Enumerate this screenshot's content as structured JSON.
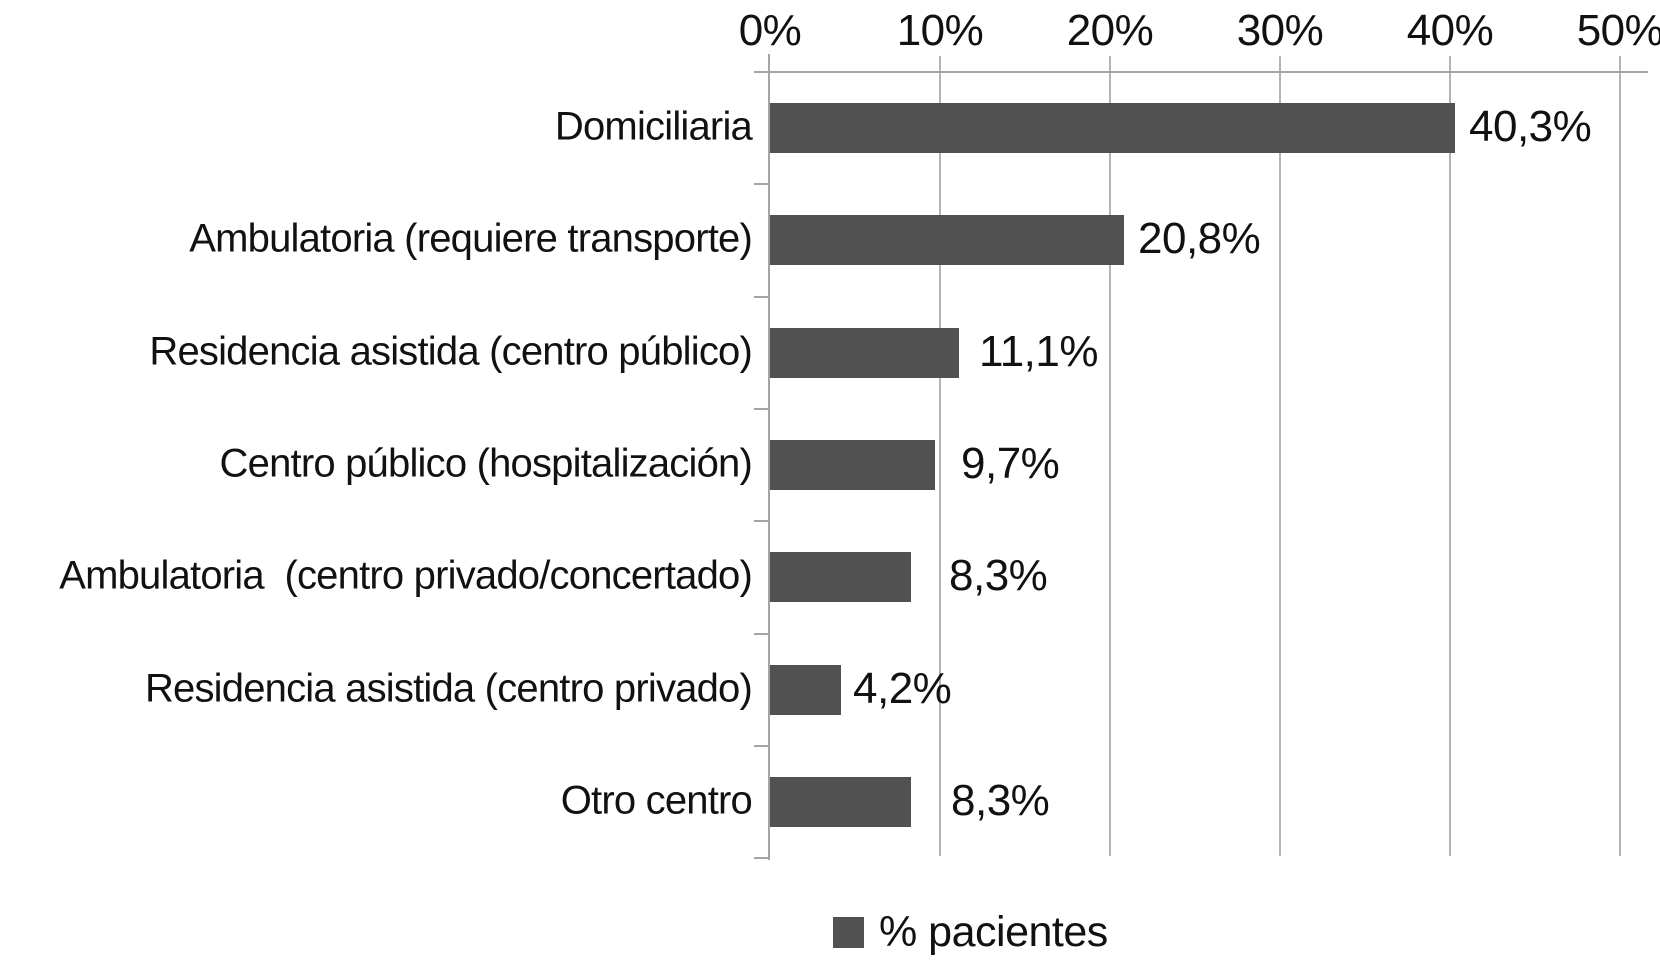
{
  "chart_data": {
    "type": "bar",
    "orientation": "horizontal",
    "title": "",
    "xlabel": "",
    "ylabel": "",
    "xlim": [
      0,
      50
    ],
    "axis_position": "top",
    "grid": "vertical",
    "legend_position": "bottom",
    "series_name": "% pacientes",
    "x_ticks": [
      "0%",
      "10%",
      "20%",
      "30%",
      "40%",
      "50%"
    ],
    "x_tick_values": [
      0,
      10,
      20,
      30,
      40,
      50
    ],
    "categories": [
      "Domiciliaria",
      "Ambulatoria (requiere transporte)",
      "Residencia asistida (centro público)",
      "Centro público (hospitalización)",
      "Ambulatoria  (centro privado/concertado)",
      "Residencia asistida (centro privado)",
      "Otro centro"
    ],
    "values": [
      40.3,
      20.8,
      11.1,
      9.7,
      8.3,
      4.2,
      8.3
    ],
    "value_labels": [
      "40,3%",
      "20,8%",
      "11,1%",
      "9,7%",
      "8,3%",
      "4,2%",
      "8,3%"
    ],
    "colors": {
      "bar": "#515151",
      "gridline": "#b4b4b4",
      "axis": "#a4a4a4",
      "text": "#111111"
    }
  }
}
